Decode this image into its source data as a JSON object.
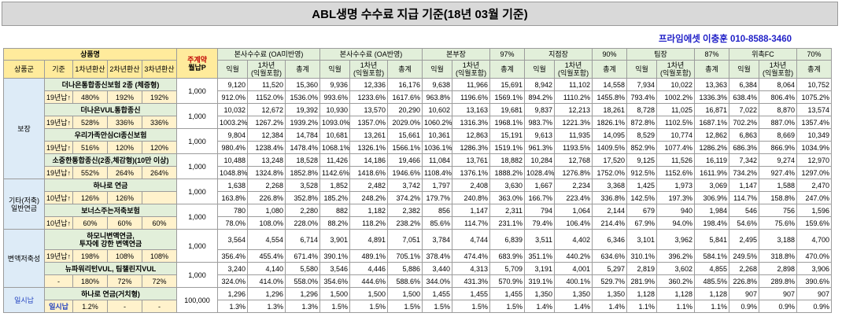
{
  "title": "ABL생명 수수료 지급 기준(18년 03월 기준)",
  "contact": "프라임에셋 이충훈 010-8588-3460",
  "header": {
    "product_name": "상품명",
    "main_contract": "주계약",
    "monthly_premium": "월납P",
    "product_group": "상품군",
    "criteria": "기준",
    "conv1": "1차년환산",
    "conv2": "2차년환산",
    "conv3": "3차년환산",
    "groups": [
      {
        "label": "본사수수료 (OA미반영)",
        "pct": ""
      },
      {
        "label": "본사수수료 (OA반영)",
        "pct": ""
      },
      {
        "label": "본부장",
        "pct": "97%"
      },
      {
        "label": "지점장",
        "pct": "90%"
      },
      {
        "label": "팀장",
        "pct": "87%"
      },
      {
        "label": "위촉FC",
        "pct": "70%"
      }
    ],
    "sub": [
      "익월",
      "1차년\n(익월포함)",
      "총계"
    ]
  },
  "categories": [
    {
      "name": "보장",
      "rows": 8
    },
    {
      "name": "기타(저축)\n일반연금",
      "rows": 4
    },
    {
      "name": "변액저축성",
      "rows": 4
    },
    {
      "name": "일시납",
      "rows": 2
    }
  ],
  "products": [
    {
      "name": "더나은통합종신보험 2종 (체증형)",
      "criteria": "19년납↑",
      "c1": "480%",
      "c2": "192%",
      "c3": "192%",
      "prem": "1,000",
      "amt": [
        "9,120",
        "11,520",
        "15,360",
        "9,936",
        "12,336",
        "16,176",
        "9,638",
        "11,966",
        "15,691",
        "8,942",
        "11,102",
        "14,558",
        "7,934",
        "10,022",
        "13,363",
        "6,384",
        "8,064",
        "10,752"
      ],
      "pct": [
        "912.0%",
        "1152.0%",
        "1536.0%",
        "993.6%",
        "1233.6%",
        "1617.6%",
        "963.8%",
        "1196.6%",
        "1569.1%",
        "894.2%",
        "1110.2%",
        "1455.8%",
        "793.4%",
        "1002.2%",
        "1336.3%",
        "638.4%",
        "806.4%",
        "1075.2%"
      ]
    },
    {
      "name": "더나은VUL통합종신",
      "criteria": "19년납↑",
      "c1": "528%",
      "c2": "336%",
      "c3": "336%",
      "prem": "1,000",
      "amt": [
        "10,032",
        "12,672",
        "19,392",
        "10,930",
        "13,570",
        "20,290",
        "10,602",
        "13,163",
        "19,681",
        "9,837",
        "12,213",
        "18,261",
        "8,728",
        "11,025",
        "16,871",
        "7,022",
        "8,870",
        "13,574"
      ],
      "pct": [
        "1003.2%",
        "1267.2%",
        "1939.2%",
        "1093.0%",
        "1357.0%",
        "2029.0%",
        "1060.2%",
        "1316.3%",
        "1968.1%",
        "983.7%",
        "1221.3%",
        "1826.1%",
        "872.8%",
        "1102.5%",
        "1687.1%",
        "702.2%",
        "887.0%",
        "1357.4%"
      ]
    },
    {
      "name": "우리가족안심CI종신보험",
      "criteria": "19년납↑",
      "c1": "516%",
      "c2": "120%",
      "c3": "120%",
      "prem": "1,000",
      "amt": [
        "9,804",
        "12,384",
        "14,784",
        "10,681",
        "13,261",
        "15,661",
        "10,361",
        "12,863",
        "15,191",
        "9,613",
        "11,935",
        "14,095",
        "8,529",
        "10,774",
        "12,862",
        "6,863",
        "8,669",
        "10,349"
      ],
      "pct": [
        "980.4%",
        "1238.4%",
        "1478.4%",
        "1068.1%",
        "1326.1%",
        "1566.1%",
        "1036.1%",
        "1286.3%",
        "1519.1%",
        "961.3%",
        "1193.5%",
        "1409.5%",
        "852.9%",
        "1077.4%",
        "1286.2%",
        "686.3%",
        "866.9%",
        "1034.9%"
      ]
    },
    {
      "name": "소중한통합종신(2종,체감형)(10만 이상)",
      "criteria": "19년납↑",
      "c1": "552%",
      "c2": "264%",
      "c3": "264%",
      "prem": "1,000",
      "amt": [
        "10,488",
        "13,248",
        "18,528",
        "11,426",
        "14,186",
        "19,466",
        "11,084",
        "13,761",
        "18,882",
        "10,284",
        "12,768",
        "17,520",
        "9,125",
        "11,526",
        "16,119",
        "7,342",
        "9,274",
        "12,970"
      ],
      "pct": [
        "1048.8%",
        "1324.8%",
        "1852.8%",
        "1142.6%",
        "1418.6%",
        "1946.6%",
        "1108.4%",
        "1376.1%",
        "1888.2%",
        "1028.4%",
        "1276.8%",
        "1752.0%",
        "912.5%",
        "1152.6%",
        "1611.9%",
        "734.2%",
        "927.4%",
        "1297.0%"
      ]
    },
    {
      "name": "하나로 연금",
      "criteria": "10년납↑",
      "c1": "126%",
      "c2": "126%",
      "c3": "",
      "prem": "1,000",
      "amt": [
        "1,638",
        "2,268",
        "3,528",
        "1,852",
        "2,482",
        "3,742",
        "1,797",
        "2,408",
        "3,630",
        "1,667",
        "2,234",
        "3,368",
        "1,425",
        "1,973",
        "3,069",
        "1,147",
        "1,588",
        "2,470"
      ],
      "pct": [
        "163.8%",
        "226.8%",
        "352.8%",
        "185.2%",
        "248.2%",
        "374.2%",
        "179.7%",
        "240.8%",
        "363.0%",
        "166.7%",
        "223.4%",
        "336.8%",
        "142.5%",
        "197.3%",
        "306.9%",
        "114.7%",
        "158.8%",
        "247.0%"
      ]
    },
    {
      "name": "보너스주는저축보험",
      "criteria": "10년납↑",
      "c1": "60%",
      "c2": "60%",
      "c3": "60%",
      "prem": "1,000",
      "amt": [
        "780",
        "1,080",
        "2,280",
        "882",
        "1,182",
        "2,382",
        "856",
        "1,147",
        "2,311",
        "794",
        "1,064",
        "2,144",
        "679",
        "940",
        "1,984",
        "546",
        "756",
        "1,596"
      ],
      "pct": [
        "78.0%",
        "108.0%",
        "228.0%",
        "88.2%",
        "118.2%",
        "238.2%",
        "85.6%",
        "114.7%",
        "231.1%",
        "79.4%",
        "106.4%",
        "214.4%",
        "67.9%",
        "94.0%",
        "198.4%",
        "54.6%",
        "75.6%",
        "159.6%"
      ]
    },
    {
      "name": "하모니변액연금,\n투자에 강한 변액연금",
      "criteria": "19년납↑",
      "c1": "198%",
      "c2": "108%",
      "c3": "108%",
      "prem": "1,000",
      "amt": [
        "3,564",
        "4,554",
        "6,714",
        "3,901",
        "4,891",
        "7,051",
        "3,784",
        "4,744",
        "6,839",
        "3,511",
        "4,402",
        "6,346",
        "3,101",
        "3,962",
        "5,841",
        "2,495",
        "3,188",
        "4,700"
      ],
      "pct": [
        "356.4%",
        "455.4%",
        "671.4%",
        "390.1%",
        "489.1%",
        "705.1%",
        "378.4%",
        "474.4%",
        "683.9%",
        "351.1%",
        "440.2%",
        "634.6%",
        "310.1%",
        "396.2%",
        "584.1%",
        "249.5%",
        "318.8%",
        "470.0%"
      ]
    },
    {
      "name": "뉴파워리턴VUL, 팀챌린지VUL",
      "criteria": "-",
      "c1": "180%",
      "c2": "72%",
      "c3": "72%",
      "prem": "1,000",
      "amt": [
        "3,240",
        "4,140",
        "5,580",
        "3,546",
        "4,446",
        "5,886",
        "3,440",
        "4,313",
        "5,709",
        "3,191",
        "4,001",
        "5,297",
        "2,819",
        "3,602",
        "4,855",
        "2,268",
        "2,898",
        "3,906"
      ],
      "pct": [
        "324.0%",
        "414.0%",
        "558.0%",
        "354.6%",
        "444.6%",
        "588.6%",
        "344.0%",
        "431.3%",
        "570.9%",
        "319.1%",
        "400.1%",
        "529.7%",
        "281.9%",
        "360.2%",
        "485.5%",
        "226.8%",
        "289.8%",
        "390.6%"
      ]
    },
    {
      "name": "하나로 연금(거치형)",
      "criteria": "일시납",
      "c1": "1.2%",
      "c2": "-",
      "c3": "-",
      "prem": "100,000",
      "amt": [
        "1,296",
        "1,296",
        "1,296",
        "1,500",
        "1,500",
        "1,500",
        "1,455",
        "1,455",
        "1,455",
        "1,350",
        "1,350",
        "1,350",
        "1,128",
        "1,128",
        "1,128",
        "907",
        "907",
        "907"
      ],
      "pct": [
        "1.3%",
        "1.3%",
        "1.3%",
        "1.5%",
        "1.5%",
        "1.5%",
        "1.5%",
        "1.5%",
        "1.5%",
        "1.4%",
        "1.4%",
        "1.4%",
        "1.1%",
        "1.1%",
        "1.1%",
        "0.9%",
        "0.9%",
        "0.9%"
      ]
    }
  ],
  "colors": {
    "yellow": "#ffeb9c",
    "blue": "#ddebf7",
    "green": "#e2efda",
    "red": "#c00000"
  }
}
